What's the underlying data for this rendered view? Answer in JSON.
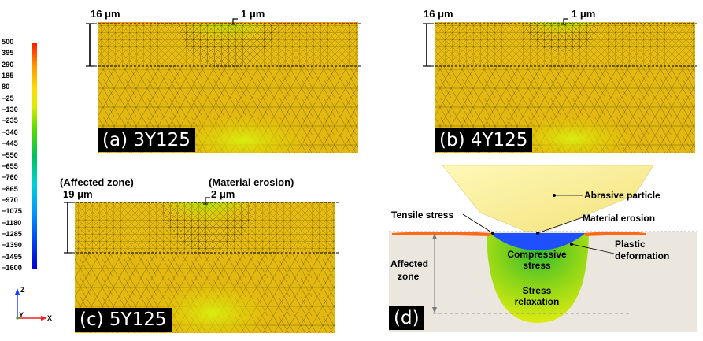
{
  "colorbar": {
    "ticks": [
      "500",
      "395",
      "290",
      "185",
      "80",
      "−25",
      "−130",
      "−235",
      "−340",
      "−445",
      "−550",
      "−655",
      "−760",
      "−865",
      "−970",
      "−1075",
      "−1180",
      "−1285",
      "−1390",
      "−1495",
      "−1600"
    ],
    "colors": [
      "#ff1a00",
      "#ff5500",
      "#ff9900",
      "#ffbb00",
      "#ffdd00",
      "#f2e600",
      "#dcec00",
      "#c6ee00",
      "#8ee400",
      "#55dc00",
      "#22cc22",
      "#00c060",
      "#00c8a0",
      "#00d2d2",
      "#00b8ee",
      "#0096ff",
      "#0070ff",
      "#0050ff",
      "#0030f0",
      "#0018e0",
      "#0000cc"
    ]
  },
  "axes": {
    "z": "Z",
    "y": "Y",
    "x": "X"
  },
  "panels": {
    "a": {
      "label": "(a) 3Y125",
      "depth": "16 μm",
      "erosion": "1 μm"
    },
    "b": {
      "label": "(b) 4Y125",
      "depth": "16 μm",
      "erosion": "1 μm"
    },
    "c": {
      "label": "(c) 5Y125",
      "depth": "19 μm",
      "erosion": "2 μm",
      "affected_label": "(Affected zone)",
      "erosion_label": "(Material erosion)"
    }
  },
  "schematic": {
    "label": "(d)",
    "abrasive_particle": "Abrasive particle",
    "tensile_stress": "Tensile stress",
    "material_erosion": "Material erosion",
    "plastic_deformation_1": "Plastic",
    "plastic_deformation_2": "deformation",
    "affected_zone_1": "Affected",
    "affected_zone_2": "zone",
    "compressive_1": "Compressive",
    "compressive_2": "stress",
    "relaxation_1": "Stress",
    "relaxation_2": "relaxation"
  }
}
